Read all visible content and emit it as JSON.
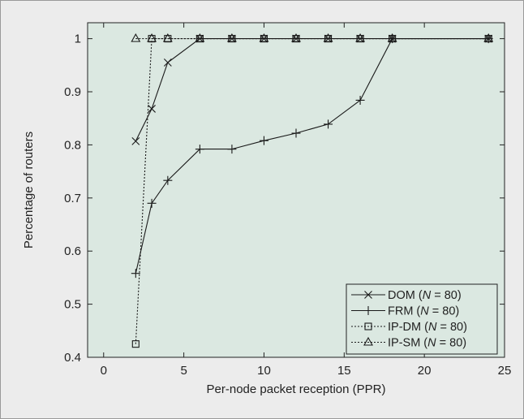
{
  "colors": {
    "page_background": "#ececec",
    "frame": "#9a9a9a",
    "plot_background": "#dbe8e1",
    "axis": "#222222",
    "line": "#1a1a1a"
  },
  "chart_data": {
    "type": "line",
    "title": "",
    "xlabel": "Per-node packet reception (PPR)",
    "ylabel": "Percentage of routers",
    "xlim": [
      -1,
      25
    ],
    "ylim": [
      0.4,
      1.03
    ],
    "xticks": [
      0,
      5,
      10,
      15,
      20,
      25
    ],
    "yticks": [
      0.4,
      0.5,
      0.6,
      0.7,
      0.8,
      0.9,
      1
    ],
    "grid": false,
    "legend_position": "bottom-right",
    "series": [
      {
        "name": "DOM (N = 80)",
        "legend_prefix": "DOM (",
        "legend_var": "N",
        "legend_suffix": " = 80)",
        "marker": "x",
        "dash": "solid",
        "points": [
          [
            2,
            0.807
          ],
          [
            3,
            0.868
          ],
          [
            4,
            0.955
          ],
          [
            6,
            1.0
          ],
          [
            8,
            1.0
          ],
          [
            10,
            1.0
          ],
          [
            12,
            1.0
          ],
          [
            14,
            1.0
          ],
          [
            16,
            1.0
          ],
          [
            18,
            1.0
          ],
          [
            24,
            1.0
          ]
        ]
      },
      {
        "name": "FRM (N = 80)",
        "legend_prefix": "FRM (",
        "legend_var": "N",
        "legend_suffix": " = 80)",
        "marker": "plus",
        "dash": "solid",
        "points": [
          [
            2,
            0.558
          ],
          [
            3,
            0.69
          ],
          [
            4,
            0.733
          ],
          [
            6,
            0.792
          ],
          [
            8,
            0.792
          ],
          [
            10,
            0.808
          ],
          [
            12,
            0.822
          ],
          [
            14,
            0.839
          ],
          [
            16,
            0.884
          ],
          [
            18,
            1.0
          ],
          [
            24,
            1.0
          ]
        ]
      },
      {
        "name": "IP-DM (N = 80)",
        "legend_prefix": "IP-DM (",
        "legend_var": "N",
        "legend_suffix": " = 80)",
        "marker": "square",
        "dash": "dotted",
        "points": [
          [
            2,
            0.425
          ],
          [
            3,
            1.0
          ],
          [
            4,
            1.0
          ],
          [
            6,
            1.0
          ],
          [
            8,
            1.0
          ],
          [
            10,
            1.0
          ],
          [
            12,
            1.0
          ],
          [
            14,
            1.0
          ],
          [
            16,
            1.0
          ],
          [
            18,
            1.0
          ],
          [
            24,
            1.0
          ]
        ]
      },
      {
        "name": "IP-SM (N = 80)",
        "legend_prefix": "IP-SM (",
        "legend_var": "N",
        "legend_suffix": " = 80)",
        "marker": "triangle",
        "dash": "dotted",
        "points": [
          [
            2,
            1.0
          ],
          [
            3,
            1.0
          ],
          [
            4,
            1.0
          ],
          [
            6,
            1.0
          ],
          [
            8,
            1.0
          ],
          [
            10,
            1.0
          ],
          [
            12,
            1.0
          ],
          [
            14,
            1.0
          ],
          [
            16,
            1.0
          ],
          [
            18,
            1.0
          ],
          [
            24,
            1.0
          ]
        ]
      }
    ]
  }
}
